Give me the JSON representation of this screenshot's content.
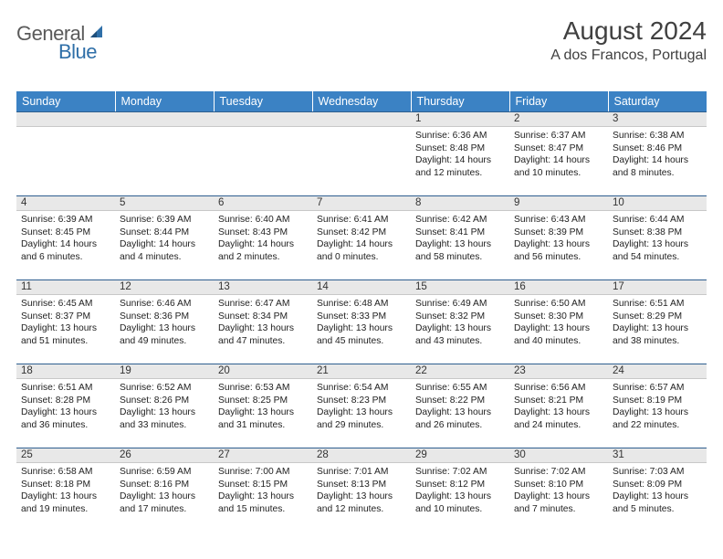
{
  "logo": {
    "word1": "General",
    "word2": "Blue"
  },
  "title": "August 2024",
  "location": "A dos Francos, Portugal",
  "colors": {
    "header_bg": "#3b82c4",
    "header_text": "#ffffff",
    "daynum_bg": "#e8e8e8",
    "daynum_border_top": "#2e5e8f",
    "body_text": "#222222",
    "title_text": "#404040",
    "logo_gray": "#5a5a5a",
    "logo_blue": "#2f6fa8"
  },
  "typography": {
    "title_fontsize": 28,
    "location_fontsize": 16,
    "dayheader_fontsize": 12.5,
    "daynum_fontsize": 11.5,
    "content_fontsize": 10.3
  },
  "day_headers": [
    "Sunday",
    "Monday",
    "Tuesday",
    "Wednesday",
    "Thursday",
    "Friday",
    "Saturday"
  ],
  "weeks": [
    [
      null,
      null,
      null,
      null,
      {
        "n": "1",
        "sunrise": "6:36 AM",
        "sunset": "8:48 PM",
        "daylight": "14 hours and 12 minutes."
      },
      {
        "n": "2",
        "sunrise": "6:37 AM",
        "sunset": "8:47 PM",
        "daylight": "14 hours and 10 minutes."
      },
      {
        "n": "3",
        "sunrise": "6:38 AM",
        "sunset": "8:46 PM",
        "daylight": "14 hours and 8 minutes."
      }
    ],
    [
      {
        "n": "4",
        "sunrise": "6:39 AM",
        "sunset": "8:45 PM",
        "daylight": "14 hours and 6 minutes."
      },
      {
        "n": "5",
        "sunrise": "6:39 AM",
        "sunset": "8:44 PM",
        "daylight": "14 hours and 4 minutes."
      },
      {
        "n": "6",
        "sunrise": "6:40 AM",
        "sunset": "8:43 PM",
        "daylight": "14 hours and 2 minutes."
      },
      {
        "n": "7",
        "sunrise": "6:41 AM",
        "sunset": "8:42 PM",
        "daylight": "14 hours and 0 minutes."
      },
      {
        "n": "8",
        "sunrise": "6:42 AM",
        "sunset": "8:41 PM",
        "daylight": "13 hours and 58 minutes."
      },
      {
        "n": "9",
        "sunrise": "6:43 AM",
        "sunset": "8:39 PM",
        "daylight": "13 hours and 56 minutes."
      },
      {
        "n": "10",
        "sunrise": "6:44 AM",
        "sunset": "8:38 PM",
        "daylight": "13 hours and 54 minutes."
      }
    ],
    [
      {
        "n": "11",
        "sunrise": "6:45 AM",
        "sunset": "8:37 PM",
        "daylight": "13 hours and 51 minutes."
      },
      {
        "n": "12",
        "sunrise": "6:46 AM",
        "sunset": "8:36 PM",
        "daylight": "13 hours and 49 minutes."
      },
      {
        "n": "13",
        "sunrise": "6:47 AM",
        "sunset": "8:34 PM",
        "daylight": "13 hours and 47 minutes."
      },
      {
        "n": "14",
        "sunrise": "6:48 AM",
        "sunset": "8:33 PM",
        "daylight": "13 hours and 45 minutes."
      },
      {
        "n": "15",
        "sunrise": "6:49 AM",
        "sunset": "8:32 PM",
        "daylight": "13 hours and 43 minutes."
      },
      {
        "n": "16",
        "sunrise": "6:50 AM",
        "sunset": "8:30 PM",
        "daylight": "13 hours and 40 minutes."
      },
      {
        "n": "17",
        "sunrise": "6:51 AM",
        "sunset": "8:29 PM",
        "daylight": "13 hours and 38 minutes."
      }
    ],
    [
      {
        "n": "18",
        "sunrise": "6:51 AM",
        "sunset": "8:28 PM",
        "daylight": "13 hours and 36 minutes."
      },
      {
        "n": "19",
        "sunrise": "6:52 AM",
        "sunset": "8:26 PM",
        "daylight": "13 hours and 33 minutes."
      },
      {
        "n": "20",
        "sunrise": "6:53 AM",
        "sunset": "8:25 PM",
        "daylight": "13 hours and 31 minutes."
      },
      {
        "n": "21",
        "sunrise": "6:54 AM",
        "sunset": "8:23 PM",
        "daylight": "13 hours and 29 minutes."
      },
      {
        "n": "22",
        "sunrise": "6:55 AM",
        "sunset": "8:22 PM",
        "daylight": "13 hours and 26 minutes."
      },
      {
        "n": "23",
        "sunrise": "6:56 AM",
        "sunset": "8:21 PM",
        "daylight": "13 hours and 24 minutes."
      },
      {
        "n": "24",
        "sunrise": "6:57 AM",
        "sunset": "8:19 PM",
        "daylight": "13 hours and 22 minutes."
      }
    ],
    [
      {
        "n": "25",
        "sunrise": "6:58 AM",
        "sunset": "8:18 PM",
        "daylight": "13 hours and 19 minutes."
      },
      {
        "n": "26",
        "sunrise": "6:59 AM",
        "sunset": "8:16 PM",
        "daylight": "13 hours and 17 minutes."
      },
      {
        "n": "27",
        "sunrise": "7:00 AM",
        "sunset": "8:15 PM",
        "daylight": "13 hours and 15 minutes."
      },
      {
        "n": "28",
        "sunrise": "7:01 AM",
        "sunset": "8:13 PM",
        "daylight": "13 hours and 12 minutes."
      },
      {
        "n": "29",
        "sunrise": "7:02 AM",
        "sunset": "8:12 PM",
        "daylight": "13 hours and 10 minutes."
      },
      {
        "n": "30",
        "sunrise": "7:02 AM",
        "sunset": "8:10 PM",
        "daylight": "13 hours and 7 minutes."
      },
      {
        "n": "31",
        "sunrise": "7:03 AM",
        "sunset": "8:09 PM",
        "daylight": "13 hours and 5 minutes."
      }
    ]
  ],
  "labels": {
    "sunrise": "Sunrise: ",
    "sunset": "Sunset: ",
    "daylight": "Daylight: "
  }
}
